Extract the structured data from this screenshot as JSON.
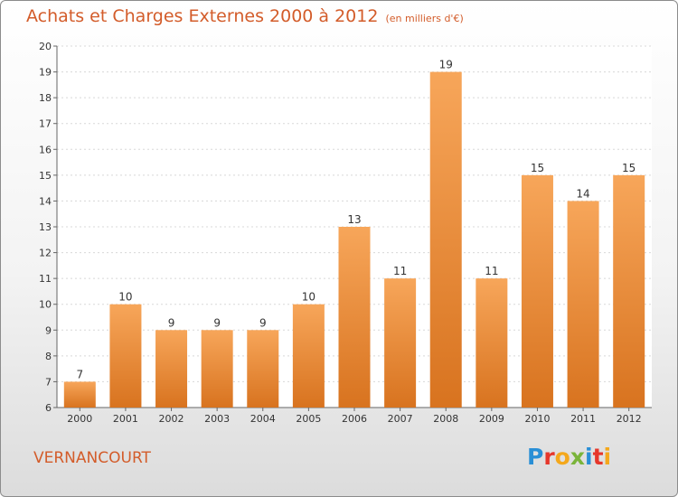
{
  "header": {
    "title": "Achats et Charges Externes 2000 à 2012",
    "unit": "(en milliers d'€)"
  },
  "footer": {
    "commune": "VERNANCOURT",
    "logo_letters": [
      "P",
      "r",
      "o",
      "x",
      "i",
      "t",
      "i"
    ],
    "logo_colors": [
      "#2a8fd6",
      "#e6372b",
      "#f4a81c",
      "#7ab43a",
      "#2a8fd6",
      "#e6372b",
      "#f4a81c"
    ]
  },
  "colors": {
    "bar_top": "#f7a65a",
    "bar_bottom": "#d8731f",
    "title": "#d35c2a"
  },
  "chart_data": {
    "type": "bar",
    "title": "Achats et Charges Externes 2000 à 2012",
    "categories": [
      "2000",
      "2001",
      "2002",
      "2003",
      "2004",
      "2005",
      "2006",
      "2007",
      "2008",
      "2009",
      "2010",
      "2011",
      "2012"
    ],
    "values": [
      7,
      10,
      9,
      9,
      9,
      10,
      13,
      11,
      19,
      11,
      15,
      14,
      15
    ],
    "ylim": [
      6,
      20
    ],
    "yticks": [
      6,
      7,
      8,
      9,
      10,
      11,
      12,
      13,
      14,
      15,
      16,
      17,
      18,
      19,
      20
    ],
    "grid": true,
    "xlabel": "",
    "ylabel": ""
  }
}
